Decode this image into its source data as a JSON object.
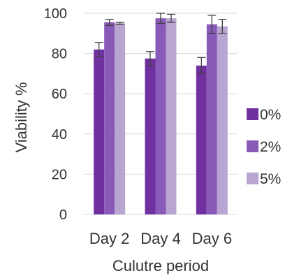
{
  "chart_data": {
    "type": "bar",
    "xlabel": "Culutre period",
    "ylabel": "Viability %",
    "categories": [
      "Day 2",
      "Day 4",
      "Day 6"
    ],
    "ylim": [
      0,
      100
    ],
    "yticks": [
      0,
      20,
      40,
      60,
      80,
      100
    ],
    "grid": true,
    "legend_position": "right",
    "series": [
      {
        "name": "0%",
        "color": "#7030a0",
        "values": [
          82,
          77.5,
          74
        ],
        "errors": [
          3.5,
          3.5,
          4
        ]
      },
      {
        "name": "2%",
        "color": "#8a5ab8",
        "values": [
          95.5,
          97.5,
          94.5
        ],
        "errors": [
          1.5,
          2.5,
          4.5
        ]
      },
      {
        "name": "5%",
        "color": "#b9a5d2",
        "values": [
          95,
          97.5,
          93.5
        ],
        "errors": [
          0.5,
          2,
          3.5
        ]
      }
    ]
  }
}
